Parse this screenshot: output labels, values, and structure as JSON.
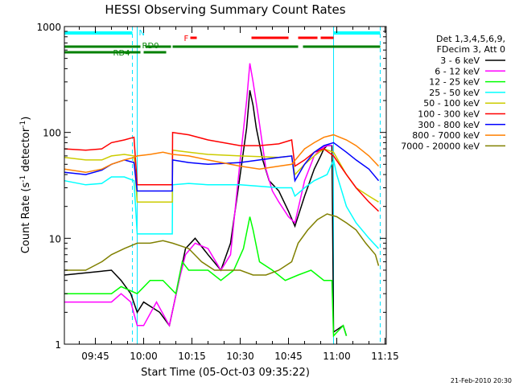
{
  "chart_data": {
    "type": "line",
    "title": "HESSI Observing Summary Count Rates",
    "xlabel": "Start Time (05-Oct-03 09:35:22)",
    "ylabel_main": "Count Rate (s",
    "ylabel_sup1": "-1",
    "ylabel_mid": " detector",
    "ylabel_sup2": "-1",
    "ylabel_end": ")",
    "x_start_minutes": 575.37,
    "x_end_minutes": 675.37,
    "ylim": [
      1,
      1000
    ],
    "y_scale": "log",
    "grid": false,
    "x_ticks": [
      {
        "minute": 585,
        "label": "09:45"
      },
      {
        "minute": 600,
        "label": "10:00"
      },
      {
        "minute": 615,
        "label": "10:15"
      },
      {
        "minute": 630,
        "label": "10:30"
      },
      {
        "minute": 645,
        "label": "10:45"
      },
      {
        "minute": 660,
        "label": "11:00"
      },
      {
        "minute": 675,
        "label": "11:15"
      }
    ],
    "y_ticks": [
      {
        "value": 1,
        "label": "1"
      },
      {
        "value": 10,
        "label": "10"
      },
      {
        "value": 100,
        "label": "100"
      },
      {
        "value": 1000,
        "label": "1000"
      }
    ],
    "legend_header": [
      "Det 1,3,4,5,6,9,",
      "FDecim 3, Att 0"
    ],
    "series": [
      {
        "name": "3 - 6 keV",
        "color": "#000000",
        "points": [
          [
            575.4,
            4.5
          ],
          [
            590,
            5
          ],
          [
            593,
            4
          ],
          [
            596,
            3
          ],
          [
            598,
            2
          ],
          [
            600,
            2.5
          ],
          [
            605,
            2
          ],
          [
            608,
            1.5
          ],
          [
            611,
            4
          ],
          [
            613,
            8
          ],
          [
            616,
            10
          ],
          [
            620,
            7
          ],
          [
            624,
            5
          ],
          [
            627,
            9
          ],
          [
            630,
            40
          ],
          [
            632,
            110
          ],
          [
            633,
            250
          ],
          [
            634,
            180
          ],
          [
            635,
            110
          ],
          [
            637,
            55
          ],
          [
            639,
            35
          ],
          [
            642,
            28
          ],
          [
            645,
            18
          ],
          [
            647,
            13
          ],
          [
            650,
            25
          ],
          [
            653,
            45
          ],
          [
            655,
            60
          ],
          [
            656,
            70
          ],
          [
            657,
            75
          ],
          [
            658.5,
            75
          ],
          [
            659,
            1.3
          ],
          [
            662,
            1.5
          ],
          [
            663,
            1.2
          ]
        ]
      },
      {
        "name": "6 - 12 keV",
        "color": "#ff00ff",
        "points": [
          [
            575.4,
            2.5
          ],
          [
            590,
            2.5
          ],
          [
            593,
            3
          ],
          [
            596,
            2.5
          ],
          [
            598,
            1.5
          ],
          [
            600,
            1.5
          ],
          [
            604,
            2.5
          ],
          [
            608,
            1.5
          ],
          [
            611,
            4
          ],
          [
            613,
            7
          ],
          [
            616,
            9
          ],
          [
            620,
            8
          ],
          [
            624,
            5
          ],
          [
            627,
            7
          ],
          [
            630,
            55
          ],
          [
            632,
            200
          ],
          [
            633,
            450
          ],
          [
            634,
            300
          ],
          [
            636,
            120
          ],
          [
            638,
            45
          ],
          [
            640,
            28
          ],
          [
            642,
            22
          ],
          [
            645,
            16
          ],
          [
            647,
            14
          ],
          [
            650,
            35
          ],
          [
            653,
            60
          ],
          [
            655,
            70
          ],
          [
            657,
            75
          ],
          [
            658.5,
            75
          ]
        ]
      },
      {
        "name": "12 - 25 keV",
        "color": "#00ff00",
        "points": [
          [
            575.4,
            3
          ],
          [
            590,
            3
          ],
          [
            593,
            3.5
          ],
          [
            598,
            3
          ],
          [
            602,
            4
          ],
          [
            606,
            4
          ],
          [
            610,
            3
          ],
          [
            612,
            6
          ],
          [
            614,
            5
          ],
          [
            616,
            5
          ],
          [
            620,
            5
          ],
          [
            624,
            4
          ],
          [
            628,
            5
          ],
          [
            631,
            8
          ],
          [
            633,
            16
          ],
          [
            634,
            12
          ],
          [
            636,
            6
          ],
          [
            640,
            5
          ],
          [
            644,
            4
          ],
          [
            648,
            4.5
          ],
          [
            652,
            5
          ],
          [
            656,
            4
          ],
          [
            658.5,
            4
          ],
          [
            659,
            1.2
          ],
          [
            662,
            1.5
          ],
          [
            663,
            1.2
          ]
        ]
      },
      {
        "name": "25 - 50 keV",
        "color": "#00ffff",
        "points": [
          [
            575.4,
            35
          ],
          [
            582,
            32
          ],
          [
            587,
            33
          ],
          [
            590,
            38
          ],
          [
            594,
            38
          ],
          [
            597,
            35
          ],
          [
            598,
            11
          ],
          [
            606,
            11
          ],
          [
            608.9,
            11
          ],
          [
            609,
            32
          ],
          [
            614,
            33
          ],
          [
            620,
            32
          ],
          [
            630,
            32
          ],
          [
            636,
            31
          ],
          [
            642,
            30
          ],
          [
            646,
            30
          ],
          [
            647,
            25
          ],
          [
            650,
            30
          ],
          [
            653,
            35
          ],
          [
            657,
            40
          ],
          [
            659,
            55
          ],
          [
            660,
            40
          ],
          [
            663,
            20
          ],
          [
            666,
            14
          ],
          [
            670,
            10
          ],
          [
            673,
            8
          ]
        ]
      },
      {
        "name": "50 - 100 keV",
        "color": "#cccc00",
        "points": [
          [
            575.4,
            58
          ],
          [
            582,
            55
          ],
          [
            587,
            55
          ],
          [
            590,
            60
          ],
          [
            594,
            62
          ],
          [
            597,
            60
          ],
          [
            598,
            22
          ],
          [
            606,
            22
          ],
          [
            608.9,
            22
          ],
          [
            609,
            68
          ],
          [
            614,
            65
          ],
          [
            620,
            62
          ],
          [
            630,
            60
          ],
          [
            636,
            59
          ],
          [
            642,
            58
          ],
          [
            646,
            60
          ],
          [
            647,
            40
          ],
          [
            650,
            50
          ],
          [
            653,
            60
          ],
          [
            656,
            70
          ],
          [
            659,
            65
          ],
          [
            663,
            40
          ],
          [
            666,
            30
          ],
          [
            670,
            25
          ],
          [
            673,
            22
          ]
        ]
      },
      {
        "name": "100 - 300 keV",
        "color": "#ff0000",
        "points": [
          [
            575.4,
            70
          ],
          [
            582,
            68
          ],
          [
            587,
            70
          ],
          [
            590,
            80
          ],
          [
            594,
            85
          ],
          [
            597,
            90
          ],
          [
            598,
            32
          ],
          [
            606,
            32
          ],
          [
            608.9,
            32
          ],
          [
            609,
            100
          ],
          [
            614,
            95
          ],
          [
            620,
            85
          ],
          [
            630,
            75
          ],
          [
            636,
            75
          ],
          [
            642,
            78
          ],
          [
            646,
            85
          ],
          [
            647,
            48
          ],
          [
            650,
            55
          ],
          [
            653,
            65
          ],
          [
            656,
            70
          ],
          [
            659,
            60
          ],
          [
            663,
            40
          ],
          [
            666,
            30
          ],
          [
            670,
            22
          ],
          [
            673,
            18
          ]
        ]
      },
      {
        "name": "300 - 800 keV",
        "color": "#0000ff",
        "points": [
          [
            575.4,
            42
          ],
          [
            582,
            40
          ],
          [
            587,
            44
          ],
          [
            590,
            50
          ],
          [
            594,
            55
          ],
          [
            597,
            52
          ],
          [
            598,
            28
          ],
          [
            606,
            28
          ],
          [
            608.9,
            28
          ],
          [
            609,
            55
          ],
          [
            614,
            52
          ],
          [
            620,
            50
          ],
          [
            630,
            52
          ],
          [
            636,
            55
          ],
          [
            642,
            58
          ],
          [
            646,
            60
          ],
          [
            647,
            35
          ],
          [
            650,
            50
          ],
          [
            653,
            65
          ],
          [
            656,
            75
          ],
          [
            659,
            80
          ],
          [
            663,
            65
          ],
          [
            666,
            55
          ],
          [
            670,
            45
          ],
          [
            673,
            35
          ]
        ]
      },
      {
        "name": "800 - 7000 keV",
        "color": "#ff8000",
        "points": [
          [
            575.4,
            45
          ],
          [
            582,
            42
          ],
          [
            587,
            45
          ],
          [
            590,
            50
          ],
          [
            594,
            55
          ],
          [
            597,
            58
          ],
          [
            598,
            60
          ],
          [
            602,
            62
          ],
          [
            606,
            65
          ],
          [
            609,
            62
          ],
          [
            614,
            60
          ],
          [
            620,
            55
          ],
          [
            630,
            48
          ],
          [
            636,
            45
          ],
          [
            642,
            48
          ],
          [
            646,
            50
          ],
          [
            650,
            70
          ],
          [
            653,
            80
          ],
          [
            656,
            90
          ],
          [
            659,
            95
          ],
          [
            663,
            85
          ],
          [
            666,
            75
          ],
          [
            670,
            60
          ],
          [
            673,
            48
          ]
        ]
      },
      {
        "name": "7000 - 20000 keV",
        "color": "#808000",
        "points": [
          [
            575.4,
            5
          ],
          [
            582,
            5
          ],
          [
            587,
            6
          ],
          [
            590,
            7
          ],
          [
            594,
            8
          ],
          [
            598,
            9
          ],
          [
            602,
            9
          ],
          [
            606,
            9.5
          ],
          [
            609,
            9
          ],
          [
            614,
            8
          ],
          [
            618,
            6
          ],
          [
            622,
            5
          ],
          [
            626,
            5
          ],
          [
            630,
            5
          ],
          [
            634,
            4.5
          ],
          [
            638,
            4.5
          ],
          [
            642,
            5
          ],
          [
            646,
            6
          ],
          [
            648,
            9
          ],
          [
            651,
            12
          ],
          [
            654,
            15
          ],
          [
            657,
            17
          ],
          [
            660,
            16
          ],
          [
            663,
            14
          ],
          [
            666,
            12
          ],
          [
            669,
            9
          ],
          [
            672,
            7
          ],
          [
            673,
            5.5
          ]
        ]
      }
    ],
    "attenuator_segments": [
      [
        575.4,
        596.5
      ],
      [
        659,
        673.5
      ]
    ],
    "attenuator_label": "N",
    "flare_segments": [
      [
        614.5,
        616.5
      ],
      [
        633.5,
        645
      ],
      [
        648,
        654
      ],
      [
        655,
        659
      ]
    ],
    "flare_label": "F",
    "state_top_segments": [
      [
        575.4,
        599
      ],
      [
        600.5,
        608.5
      ],
      [
        609,
        648
      ],
      [
        649.5,
        673.5
      ]
    ],
    "state_top_label": "RD0",
    "state_bottom_segments": [
      [
        575.4,
        599
      ],
      [
        600,
        607
      ]
    ],
    "state_bottom_label": "RD4",
    "cyan_lines": [
      [
        596.5,
        "dashed"
      ],
      [
        598,
        "solid"
      ],
      [
        659,
        "solid"
      ],
      [
        673.5,
        "dashed"
      ]
    ],
    "footer_date": "21-Feb-2010 20:30"
  }
}
